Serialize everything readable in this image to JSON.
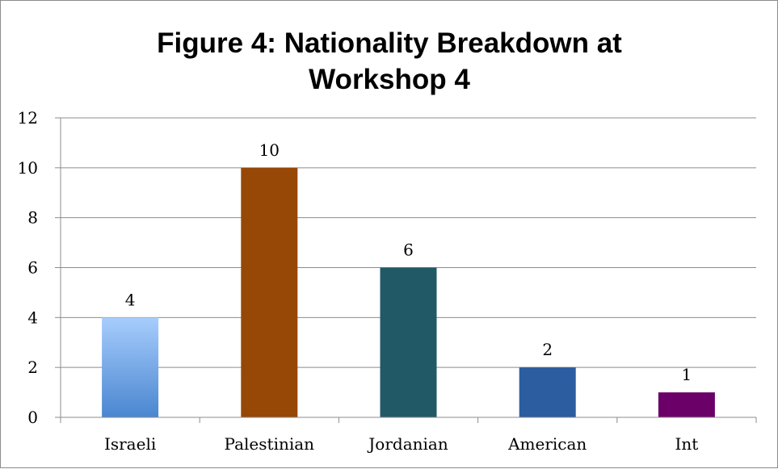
{
  "chart_data": {
    "type": "bar",
    "title_lines": [
      "Figure 4: Nationality Breakdown at",
      "Workshop 4"
    ],
    "categories": [
      "Israeli",
      "Palestinian",
      "Jordanian",
      "American",
      "Int"
    ],
    "values": [
      4,
      10,
      6,
      2,
      1
    ],
    "data_labels": [
      "4",
      "10",
      "6",
      "2",
      "1"
    ],
    "y_ticks": [
      "0",
      "2",
      "4",
      "6",
      "8",
      "10",
      "12"
    ],
    "ylim": [
      0,
      12
    ],
    "grid": true,
    "legend": "none",
    "bar_colors": [
      "#4a86d0",
      "#974706",
      "#215967",
      "#2b5da0",
      "#6b0068"
    ],
    "bar_gradient_top": "#a7cdfd"
  }
}
